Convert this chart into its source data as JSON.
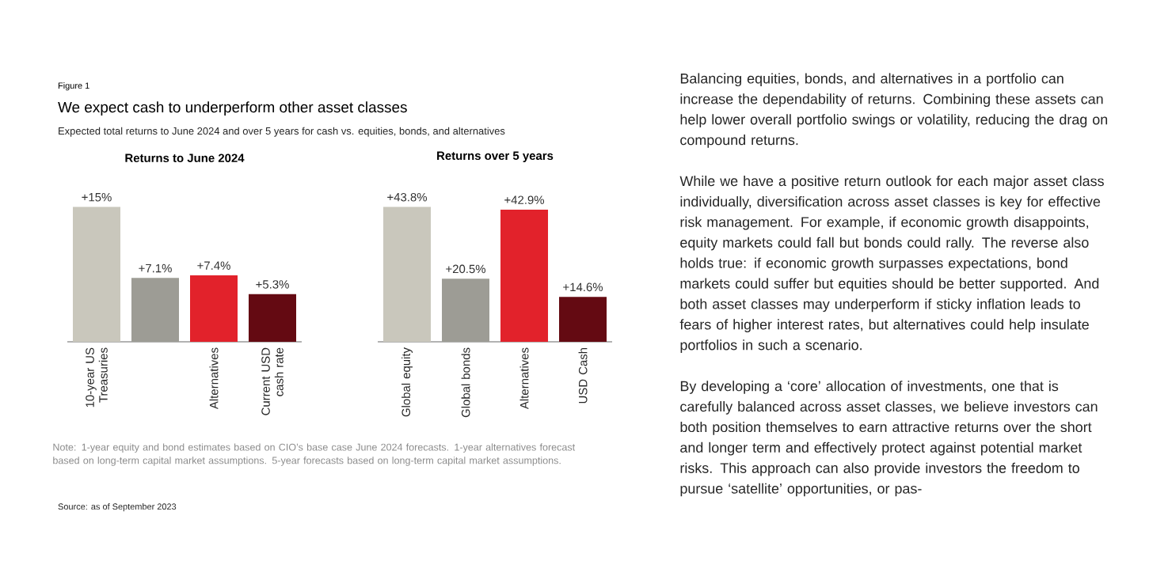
{
  "chart_data": [
    {
      "type": "other",
      "title": "We expect cash to underperform other asset classes",
      "subtitle": "Expected total returns to June 2024 and over 5 years for cash vs. equities, bonds, and alternatives",
      "annotations": [
        "Figure 1",
        "Note: 1-year equity and bond estimates based on CIO’s base case June 2024 forecasts. 1-year alternatives forecast based on long-term capital market assumptions. 5-year forecasts based on long-term capital market assumptions.",
        "Source: as of September 2023"
      ]
    },
    {
      "type": "bar",
      "title": "Returns to June 2024",
      "categories": [
        "10-year US Treasuries",
        null,
        "Alternatives",
        "Current USD cash rate"
      ],
      "values": [
        15,
        7.1,
        7.4,
        5.3
      ],
      "colors": [
        "#c9c7bc",
        "#9d9c95",
        "#e2222b",
        "#640a12"
      ],
      "value_labels": [
        "+15%",
        "+7.1%",
        "+7.4%",
        "+5.3%"
      ]
    },
    {
      "type": "bar",
      "title": "Returns over 5 years",
      "categories": [
        "Global equity",
        "Global bonds",
        "Alternatives",
        "USD Cash"
      ],
      "values": [
        43.8,
        20.5,
        42.9,
        14.6
      ],
      "colors": [
        "#c9c7bc",
        "#9d9c95",
        "#e2222b",
        "#640a12"
      ],
      "value_labels": [
        "+43.8%",
        "+20.5%",
        "+42.9%",
        "+14.6%"
      ]
    },
    {
      "type": "other",
      "annotations": [
        "Balancing equities, bonds, and alternatives in a portfolio can increase the dependability of returns. Combining these assets can help lower overall portfolio swings or volatility, reducing the drag on compound returns.",
        "While we have a positive return outlook for each major asset class individually, diversification across asset classes is key for effective risk management. For example, if economic growth disappoints, equity markets could fall but bonds could rally. The reverse also holds true: if economic growth surpasses expectations, bond markets could suffer but equities should be better supported. And both asset classes may underperform if sticky inflation leads to fears of higher interest rates, but alternatives could help insulate portfolios in such a scenario.",
        "By developing a ‘core’ allocation of investments, one that is carefully balanced across asset classes, we believe investors can both position themselves to earn attractive returns over the short and longer term and effectively protect against potential market risks. This approach can also provide investors the freedom to pursue ‘satellite’ opportunities, or pas-"
      ]
    }
  ]
}
